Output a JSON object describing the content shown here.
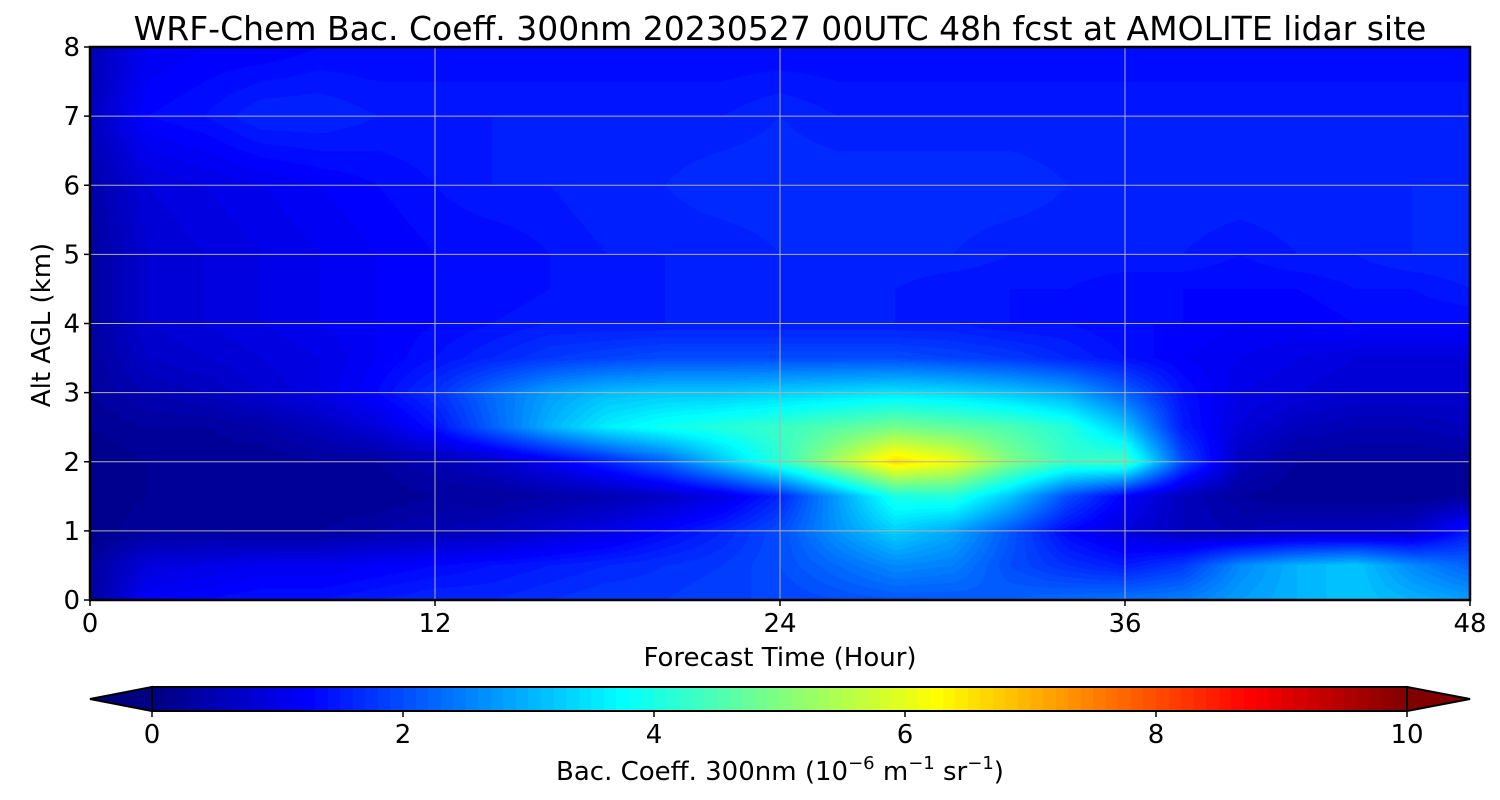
{
  "chart_data": {
    "type": "heatmap",
    "title": "WRF-Chem Bac. Coeff. 300nm  20230527 00UTC 48h fcst at AMOLITE lidar site",
    "xlabel": "Forecast Time (Hour)",
    "ylabel": "Alt AGL (km)",
    "xlim": [
      0,
      48
    ],
    "ylim": [
      0,
      8
    ],
    "xticks": [
      "0",
      "12",
      "24",
      "36",
      "48"
    ],
    "yticks": [
      "0",
      "1",
      "2",
      "3",
      "4",
      "5",
      "6",
      "7",
      "8"
    ],
    "grid": true,
    "colormap": "jet",
    "colorbar": {
      "label_prefix": "Bac. Coeff. 300nm  (10",
      "label_exp1": "−6",
      "label_mid": " m",
      "label_exp2": "−1",
      "label_mid2": " sr",
      "label_exp3": "−1",
      "label_suffix": ")",
      "range": [
        0,
        10
      ],
      "ticks": [
        "0",
        "2",
        "4",
        "6",
        "8",
        "10"
      ],
      "extend": "both",
      "placement": "bottom"
    },
    "x": [
      0,
      2,
      4,
      6,
      8,
      10,
      12,
      14,
      16,
      18,
      20,
      22,
      24,
      26,
      28,
      30,
      32,
      34,
      36,
      38,
      40,
      42,
      44,
      46,
      48
    ],
    "y": [
      0,
      0.5,
      1,
      1.5,
      2,
      2.5,
      3,
      3.5,
      4,
      4.5,
      5,
      6,
      7,
      8
    ],
    "z": [
      [
        0.3,
        1.2,
        1.3,
        1.4,
        1.4,
        1.5,
        1.6,
        1.6,
        1.7,
        1.8,
        1.8,
        1.9,
        1.9,
        2.0,
        2.1,
        2.1,
        2.2,
        2.3,
        2.4,
        2.5,
        2.8,
        3.0,
        3.2,
        3.0,
        2.8
      ],
      [
        0.3,
        0.9,
        1.0,
        1.1,
        1.1,
        1.2,
        1.3,
        1.4,
        1.5,
        1.6,
        1.7,
        1.8,
        2.0,
        2.3,
        2.6,
        2.5,
        2.0,
        1.7,
        1.5,
        1.8,
        2.6,
        3.0,
        3.2,
        2.6,
        2.2
      ],
      [
        0.1,
        0.3,
        0.3,
        0.3,
        0.3,
        0.4,
        0.5,
        0.6,
        0.8,
        1.0,
        1.3,
        1.6,
        2.0,
        2.7,
        3.3,
        2.9,
        2.1,
        1.3,
        0.9,
        0.6,
        0.5,
        0.6,
        0.6,
        0.7,
        1.5
      ],
      [
        0.1,
        0.2,
        0.2,
        0.2,
        0.2,
        0.2,
        0.3,
        0.3,
        0.4,
        0.5,
        0.7,
        1.0,
        1.6,
        2.8,
        4.0,
        4.1,
        3.2,
        2.0,
        1.2,
        0.6,
        0.3,
        0.2,
        0.2,
        0.2,
        0.3
      ],
      [
        0.1,
        0.2,
        0.2,
        0.2,
        0.3,
        0.3,
        0.5,
        0.7,
        1.1,
        1.6,
        2.2,
        3.2,
        4.2,
        5.4,
        6.6,
        6.1,
        5.0,
        4.3,
        4.4,
        2.0,
        0.6,
        0.3,
        0.3,
        0.3,
        0.3
      ],
      [
        0.2,
        0.3,
        0.3,
        0.4,
        0.6,
        0.9,
        1.4,
        2.2,
        3.0,
        3.6,
        3.9,
        4.1,
        4.3,
        4.6,
        4.9,
        4.7,
        4.5,
        4.1,
        3.2,
        1.5,
        0.9,
        0.6,
        0.5,
        0.5,
        0.6
      ],
      [
        0.3,
        0.5,
        0.6,
        0.8,
        1.0,
        1.3,
        1.7,
        2.3,
        2.8,
        3.1,
        3.2,
        3.2,
        3.3,
        3.4,
        3.5,
        3.4,
        3.2,
        2.9,
        2.2,
        1.4,
        1.0,
        0.9,
        0.8,
        0.8,
        0.8
      ],
      [
        0.3,
        0.7,
        0.8,
        0.9,
        1.0,
        1.2,
        1.4,
        1.6,
        1.8,
        1.9,
        2.0,
        2.0,
        2.0,
        2.0,
        2.0,
        1.9,
        1.8,
        1.6,
        1.4,
        1.2,
        1.1,
        1.0,
        0.9,
        0.9,
        0.9
      ],
      [
        0.3,
        0.8,
        0.9,
        1.0,
        1.1,
        1.2,
        1.3,
        1.4,
        1.5,
        1.5,
        1.5,
        1.5,
        1.5,
        1.5,
        1.5,
        1.5,
        1.4,
        1.4,
        1.3,
        1.3,
        1.2,
        1.2,
        1.3,
        1.3,
        1.3
      ],
      [
        0.3,
        0.8,
        0.9,
        1.0,
        1.1,
        1.2,
        1.3,
        1.3,
        1.4,
        1.4,
        1.5,
        1.5,
        1.5,
        1.5,
        1.5,
        1.4,
        1.4,
        1.4,
        1.3,
        1.3,
        1.3,
        1.3,
        1.4,
        1.4,
        1.5
      ],
      [
        0.3,
        0.8,
        0.9,
        1.0,
        1.1,
        1.2,
        1.3,
        1.3,
        1.4,
        1.5,
        1.5,
        1.5,
        1.6,
        1.6,
        1.6,
        1.6,
        1.5,
        1.5,
        1.5,
        1.5,
        1.4,
        1.5,
        1.5,
        1.6,
        1.6
      ],
      [
        0.4,
        0.9,
        1.0,
        1.1,
        1.2,
        1.3,
        1.4,
        1.5,
        1.5,
        1.6,
        1.6,
        1.7,
        1.7,
        1.7,
        1.7,
        1.7,
        1.7,
        1.6,
        1.6,
        1.6,
        1.6,
        1.6,
        1.6,
        1.6,
        1.6
      ],
      [
        0.6,
        1.3,
        1.4,
        1.6,
        1.6,
        1.5,
        1.5,
        1.5,
        1.5,
        1.5,
        1.5,
        1.5,
        1.6,
        1.5,
        1.5,
        1.5,
        1.5,
        1.5,
        1.5,
        1.5,
        1.5,
        1.5,
        1.5,
        1.5,
        1.5
      ],
      [
        0.5,
        1.1,
        1.2,
        1.2,
        1.3,
        1.3,
        1.3,
        1.3,
        1.3,
        1.3,
        1.3,
        1.3,
        1.3,
        1.3,
        1.3,
        1.3,
        1.3,
        1.3,
        1.3,
        1.3,
        1.3,
        1.3,
        1.3,
        1.3,
        1.3
      ]
    ]
  }
}
